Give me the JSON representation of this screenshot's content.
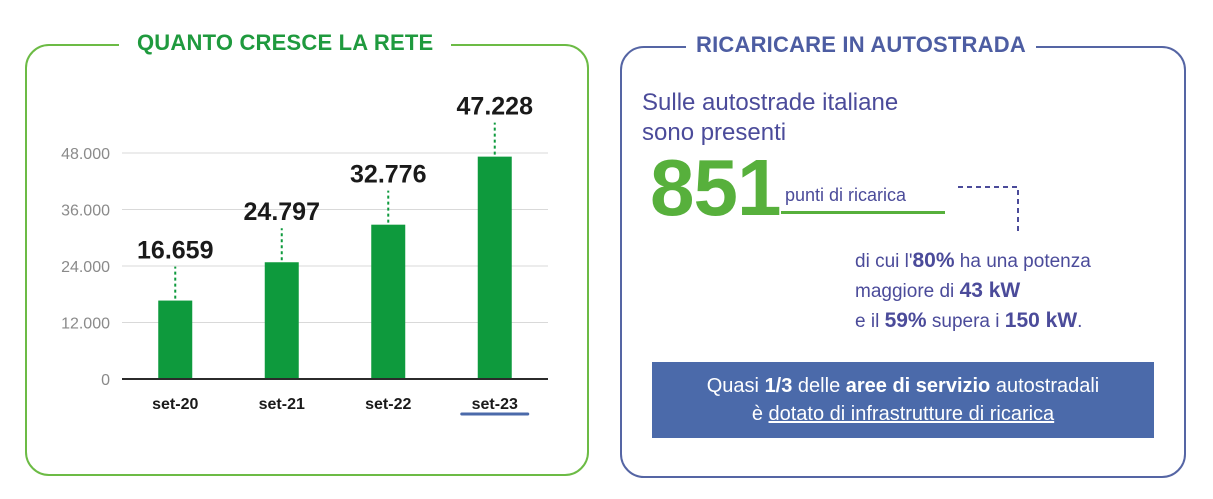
{
  "left_panel": {
    "title": "QUANTO CRESCE LA RETE"
  },
  "right_panel": {
    "title": "RICARICARE IN AUTOSTRADA",
    "intro_line1": "Sulle autostrade italiane",
    "intro_line2": "sono presenti",
    "big_number": "851",
    "big_number_label": "punti di ricarica",
    "detail": {
      "l1_pre": "di cui l'",
      "l1_bold": "80%",
      "l1_post": " ha una potenza",
      "l2_pre": "maggiore di ",
      "l2_bold": "43 kW",
      "l3_pre": "e il ",
      "l3_bold1": "59%",
      "l3_mid": " supera i ",
      "l3_bold2": "150 kW",
      "l3_post": "."
    },
    "callout": {
      "p1": "Quasi ",
      "b1": "1/3",
      "p2": " delle ",
      "b2": "aree di servizio",
      "p3": " autostradali",
      "p4": "è ",
      "u1": "dotato di infrastrutture di ricarica"
    }
  },
  "colors": {
    "bar": "#0e9a3d",
    "accent_green": "#57b03c",
    "accent_blue": "#4b6aaa"
  },
  "chart_data": {
    "type": "bar",
    "categories": [
      "set-20",
      "set-21",
      "set-22",
      "set-23"
    ],
    "values": [
      16659,
      24797,
      32776,
      47228
    ],
    "value_labels": [
      "16.659",
      "24.797",
      "32.776",
      "47.228"
    ],
    "ytick_values": [
      0,
      12000,
      24000,
      36000,
      48000
    ],
    "ytick_labels": [
      "0",
      "12.000",
      "24.000",
      "36.000",
      "48.000"
    ],
    "ylim": [
      0,
      48000
    ],
    "highlighted_category": "set-23",
    "grid": true
  }
}
